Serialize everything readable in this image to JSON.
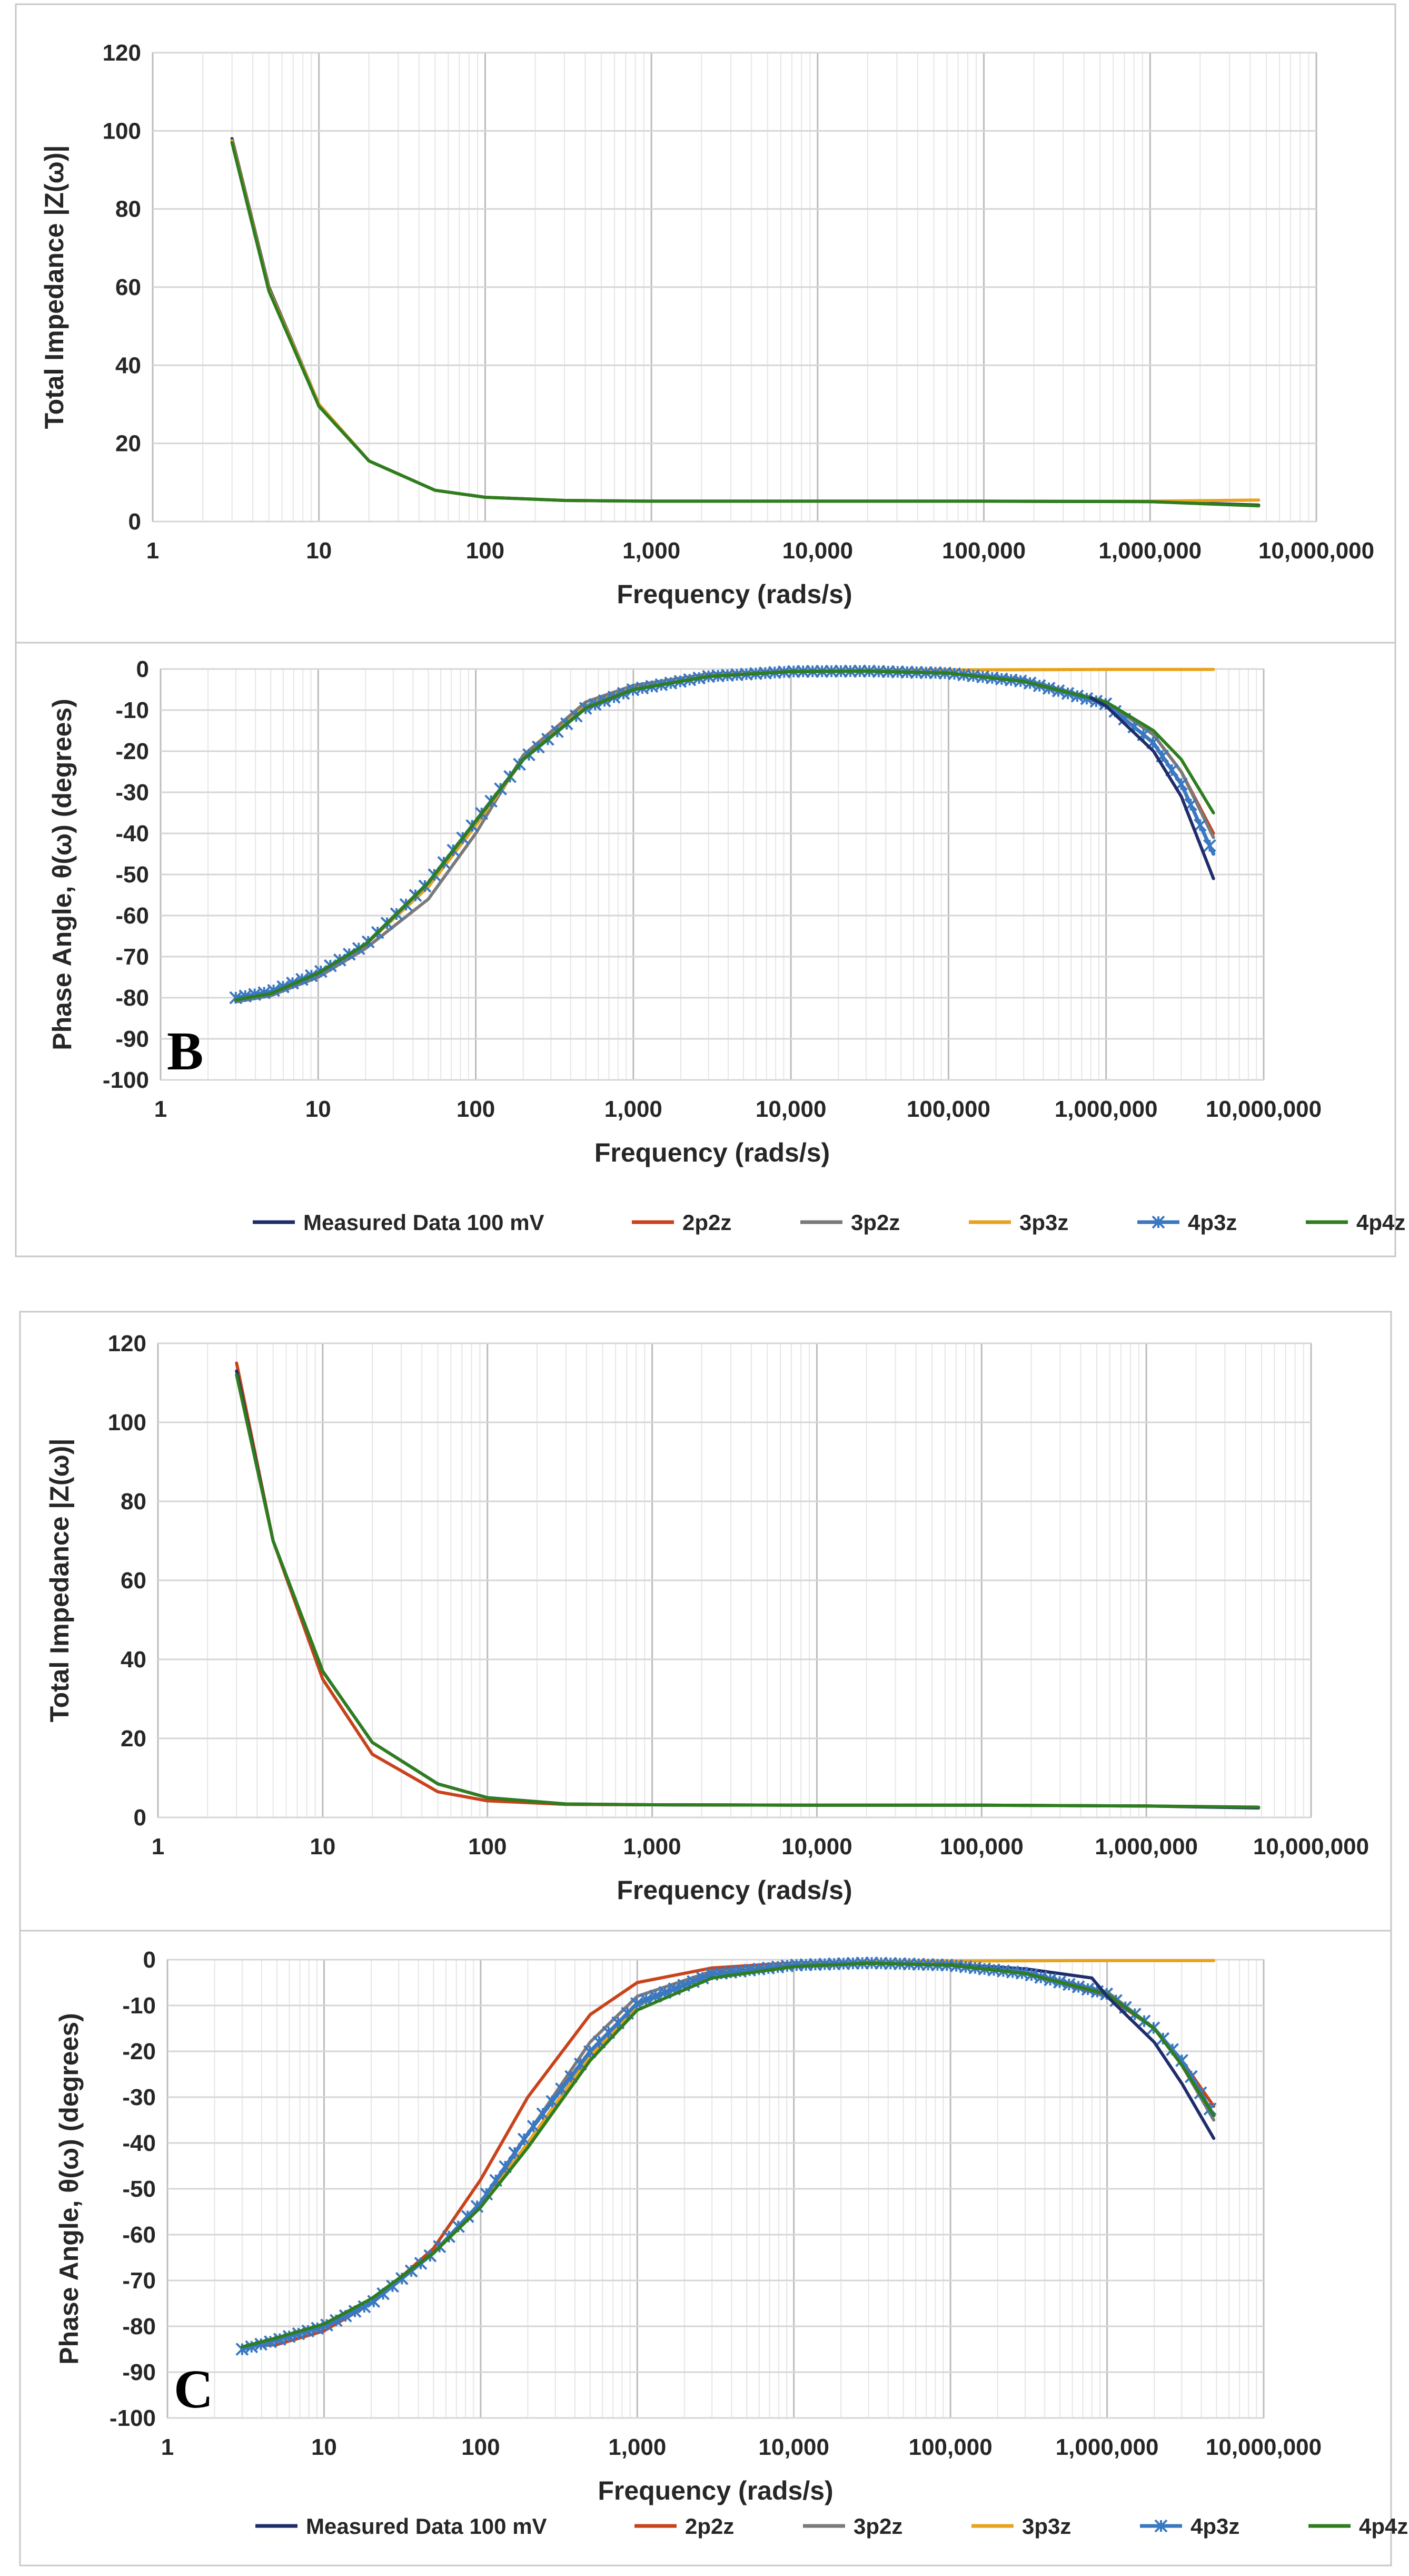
{
  "colors": {
    "measured": "#1f2d6b",
    "2p2z": "#c8431b",
    "3p2z": "#7a7a7a",
    "3p3z": "#e8a21c",
    "4p3z": "#3a78c2",
    "4p4z": "#2e7d1f"
  },
  "legend": {
    "series": [
      {
        "key": "measured",
        "label": "Measured Data 100 mV",
        "marker": false
      },
      {
        "key": "2p2z",
        "label": "2p2z",
        "marker": false
      },
      {
        "key": "3p2z",
        "label": "3p2z",
        "marker": false
      },
      {
        "key": "3p3z",
        "label": "3p3z",
        "marker": false
      },
      {
        "key": "4p3z",
        "label": "4p3z",
        "marker": true
      },
      {
        "key": "4p4z",
        "label": "4p4z",
        "marker": false
      }
    ]
  },
  "chart_data": [
    {
      "id": "b-impedance",
      "type": "line",
      "title": "",
      "xscale": "log",
      "xlim": [
        1,
        10000000
      ],
      "ylim": [
        0,
        120
      ],
      "yticks": [
        0,
        20,
        40,
        60,
        80,
        100,
        120
      ],
      "xticks": [
        "1",
        "10",
        "100",
        "1,000",
        "10,000",
        "100,000",
        "1,000,000",
        "10,000,000"
      ],
      "xlabel": "Frequency (rads/s)",
      "ylabel": "Total Impedance |Z(ω)|",
      "panel_label": "",
      "series": [
        {
          "key": "measured",
          "x": [
            3,
            5,
            10,
            20,
            50,
            100,
            300,
            1000,
            10000,
            100000,
            1000000,
            4500000
          ],
          "y": [
            98,
            60,
            30,
            15.5,
            8,
            6.2,
            5.4,
            5.2,
            5.2,
            5.2,
            5.1,
            4.2
          ]
        },
        {
          "key": "3p3z",
          "x": [
            3,
            5,
            10,
            20,
            50,
            100,
            300,
            1000,
            10000,
            100000,
            1000000,
            4500000
          ],
          "y": [
            97.5,
            59.5,
            30,
            15.5,
            8,
            6.2,
            5.4,
            5.2,
            5.2,
            5.2,
            5.2,
            5.5
          ]
        },
        {
          "key": "4p4z",
          "x": [
            3,
            5,
            10,
            20,
            50,
            100,
            300,
            1000,
            10000,
            100000,
            1000000,
            4500000
          ],
          "y": [
            97,
            59,
            29.5,
            15.5,
            8,
            6.2,
            5.4,
            5.2,
            5.2,
            5.2,
            5.1,
            4
          ]
        }
      ]
    },
    {
      "id": "b-phase",
      "type": "line",
      "title": "",
      "xscale": "log",
      "xlim": [
        1,
        10000000
      ],
      "ylim": [
        -100,
        0
      ],
      "yticks": [
        -100,
        -90,
        -80,
        -70,
        -60,
        -50,
        -40,
        -30,
        -20,
        -10,
        0
      ],
      "xticks": [
        "1",
        "10",
        "100",
        "1,000",
        "10,000",
        "100,000",
        "1,000,000",
        "10,000,000"
      ],
      "xlabel": "Frequency (rads/s)",
      "ylabel": "Phase Angle, θ(ω) (degrees)",
      "panel_label": "B",
      "series": [
        {
          "key": "measured",
          "x": [
            3,
            5,
            10,
            20,
            50,
            100,
            200,
            500,
            1000,
            3000,
            10000,
            30000,
            100000,
            300000,
            800000
          ],
          "y": [
            -80.5,
            -79,
            -74,
            -67,
            -52,
            -37,
            -22,
            -9,
            -4.5,
            -1.5,
            -0.5,
            -0.5,
            -1,
            -3,
            -7
          ]
        },
        {
          "key": "2p2z",
          "x": [
            3,
            5,
            10,
            20,
            50,
            100,
            200,
            500,
            1000,
            3000,
            10000,
            30000,
            100000,
            300000,
            1000000,
            2000000,
            3000000,
            4800000
          ],
          "y": [
            -80.5,
            -79,
            -74,
            -67,
            -53,
            -38,
            -22,
            -9,
            -4.5,
            -1.5,
            -0.5,
            -0.5,
            -1,
            -2.5,
            -8,
            -16,
            -25,
            -40
          ]
        },
        {
          "key": "3p2z",
          "x": [
            3,
            5,
            10,
            20,
            50,
            100,
            200,
            500,
            1000,
            3000,
            10000,
            30000,
            100000,
            300000,
            1000000,
            2000000,
            3000000,
            4800000
          ],
          "y": [
            -81,
            -79.5,
            -75,
            -68,
            -56,
            -40,
            -21,
            -8,
            -4,
            -1.2,
            -0.4,
            -0.4,
            -1,
            -2.5,
            -8,
            -16,
            -25,
            -41
          ]
        },
        {
          "key": "3p3z",
          "x": [
            3,
            5,
            10,
            20,
            50,
            100,
            200,
            500,
            1000,
            3000,
            10000,
            30000,
            100000,
            1000000,
            4800000
          ],
          "y": [
            -80.5,
            -79,
            -74,
            -67,
            -53,
            -38,
            -22,
            -9,
            -4.5,
            -1.5,
            -0.5,
            -0.3,
            -0.2,
            -0.1,
            -0.1
          ]
        },
        {
          "key": "4p3z",
          "x": [
            3,
            5,
            10,
            20,
            50,
            100,
            200,
            500,
            1000,
            3000,
            10000,
            30000,
            100000,
            300000,
            1000000,
            2000000,
            3000000,
            4800000
          ],
          "y": [
            -80,
            -78.5,
            -74,
            -67,
            -52,
            -37,
            -22,
            -9.5,
            -5,
            -1.8,
            -0.6,
            -0.5,
            -1,
            -3,
            -8.5,
            -18,
            -28,
            -45
          ]
        },
        {
          "key": "4p4z",
          "x": [
            3,
            5,
            10,
            20,
            50,
            100,
            200,
            500,
            1000,
            3000,
            10000,
            30000,
            100000,
            300000,
            1000000,
            2000000,
            3000000,
            4800000
          ],
          "y": [
            -80.5,
            -79,
            -74,
            -67,
            -52,
            -37,
            -22,
            -9.5,
            -5,
            -1.8,
            -0.6,
            -0.5,
            -1,
            -3,
            -8,
            -15,
            -22,
            -35
          ]
        },
        {
          "key": "measured",
          "x": [
            800000,
            1000000,
            2000000,
            3000000,
            4800000
          ],
          "y": [
            -7,
            -9,
            -20,
            -31,
            -51
          ]
        }
      ]
    },
    {
      "id": "c-impedance",
      "type": "line",
      "title": "",
      "xscale": "log",
      "xlim": [
        1,
        10000000
      ],
      "ylim": [
        0,
        120
      ],
      "yticks": [
        0,
        20,
        40,
        60,
        80,
        100,
        120
      ],
      "xticks": [
        "1",
        "10",
        "100",
        "1,000",
        "10,000",
        "100,000",
        "1,000,000",
        "10,000,000"
      ],
      "xlabel": "Frequency (rads/s)",
      "ylabel": "Total Impedance |Z(ω)|",
      "panel_label": "",
      "series": [
        {
          "key": "2p2z",
          "x": [
            3,
            5,
            10,
            20,
            50,
            100,
            300,
            1000,
            10000,
            100000,
            1000000,
            4800000
          ],
          "y": [
            115,
            70,
            35,
            16,
            6.5,
            4.2,
            3.3,
            3.2,
            3.1,
            3.1,
            2.9,
            2.5
          ]
        },
        {
          "key": "measured",
          "x": [
            3,
            5,
            10,
            20,
            50,
            100,
            300,
            1000,
            10000,
            100000,
            1000000,
            4800000
          ],
          "y": [
            113,
            70,
            37,
            19,
            8.5,
            5,
            3.4,
            3.2,
            3.1,
            3.1,
            2.9,
            2.4
          ]
        },
        {
          "key": "4p4z",
          "x": [
            3,
            5,
            10,
            20,
            50,
            100,
            300,
            1000,
            10000,
            100000,
            1000000,
            4800000
          ],
          "y": [
            112,
            70,
            37,
            19,
            8.5,
            5,
            3.4,
            3.2,
            3.1,
            3.1,
            2.9,
            2.6
          ]
        }
      ]
    },
    {
      "id": "c-phase",
      "type": "line",
      "title": "",
      "xscale": "log",
      "xlim": [
        1,
        10000000
      ],
      "ylim": [
        -100,
        0
      ],
      "yticks": [
        -100,
        -90,
        -80,
        -70,
        -60,
        -50,
        -40,
        -30,
        -20,
        -10,
        0
      ],
      "xticks": [
        "1",
        "10",
        "100",
        "1,000",
        "10,000",
        "100,000",
        "1,000,000",
        "10,000,000"
      ],
      "xlabel": "Frequency (rads/s)",
      "ylabel": "Phase Angle, θ(ω) (degrees)",
      "panel_label": "C",
      "series": [
        {
          "key": "2p2z",
          "x": [
            3,
            5,
            10,
            20,
            50,
            100,
            200,
            500,
            1000,
            3000,
            10000,
            30000,
            100000,
            300000,
            1000000,
            2000000,
            3000000,
            4800000
          ],
          "y": [
            -84.5,
            -84,
            -81,
            -75,
            -63,
            -48,
            -30,
            -12,
            -5,
            -1.8,
            -0.7,
            -0.5,
            -1,
            -3,
            -8,
            -15,
            -22,
            -32
          ]
        },
        {
          "key": "3p2z",
          "x": [
            3,
            5,
            10,
            20,
            50,
            100,
            200,
            500,
            1000,
            3000,
            10000,
            30000,
            100000,
            300000,
            1000000,
            2000000,
            3000000,
            4800000
          ],
          "y": [
            -85,
            -83,
            -80,
            -75,
            -64,
            -54,
            -38,
            -18,
            -8,
            -2.5,
            -0.8,
            -0.5,
            -1,
            -2.8,
            -7,
            -15,
            -23,
            -35
          ]
        },
        {
          "key": "measured",
          "x": [
            3,
            5,
            10,
            20,
            50,
            100,
            200,
            500,
            1000,
            3000,
            10000,
            30000,
            100000,
            300000,
            800000
          ],
          "y": [
            -85,
            -83,
            -80,
            -75,
            -64,
            -54,
            -40,
            -21,
            -10,
            -3,
            -1,
            -0.6,
            -1,
            -2,
            -4
          ]
        },
        {
          "key": "3p3z",
          "x": [
            3,
            5,
            10,
            20,
            50,
            100,
            200,
            500,
            1000,
            3000,
            10000,
            30000,
            100000,
            1000000,
            4800000
          ],
          "y": [
            -85,
            -83,
            -80,
            -75,
            -64,
            -54,
            -40,
            -21,
            -10,
            -3,
            -1,
            -0.5,
            -0.3,
            -0.2,
            -0.2
          ]
        },
        {
          "key": "4p3z",
          "x": [
            3,
            5,
            10,
            20,
            50,
            100,
            200,
            500,
            1000,
            3000,
            10000,
            30000,
            100000,
            300000,
            1000000,
            2000000,
            3000000,
            4800000
          ],
          "y": [
            -85,
            -83,
            -80,
            -75,
            -64,
            -53,
            -38,
            -20,
            -9.5,
            -3.2,
            -1.2,
            -0.7,
            -1.2,
            -3,
            -7.5,
            -15,
            -22,
            -34
          ]
        },
        {
          "key": "4p4z",
          "x": [
            3,
            5,
            10,
            20,
            50,
            100,
            200,
            500,
            1000,
            3000,
            10000,
            30000,
            100000,
            300000,
            1000000,
            2000000,
            3000000,
            4800000
          ],
          "y": [
            -84.5,
            -82.5,
            -79.5,
            -74,
            -64,
            -54,
            -41,
            -22,
            -11,
            -4,
            -1.5,
            -0.8,
            -1.2,
            -3,
            -7.5,
            -15,
            -23,
            -34
          ]
        },
        {
          "key": "measured",
          "x": [
            800000,
            1000000,
            2000000,
            3000000,
            4800000
          ],
          "y": [
            -4,
            -8,
            -18,
            -27,
            -39
          ]
        }
      ]
    }
  ]
}
